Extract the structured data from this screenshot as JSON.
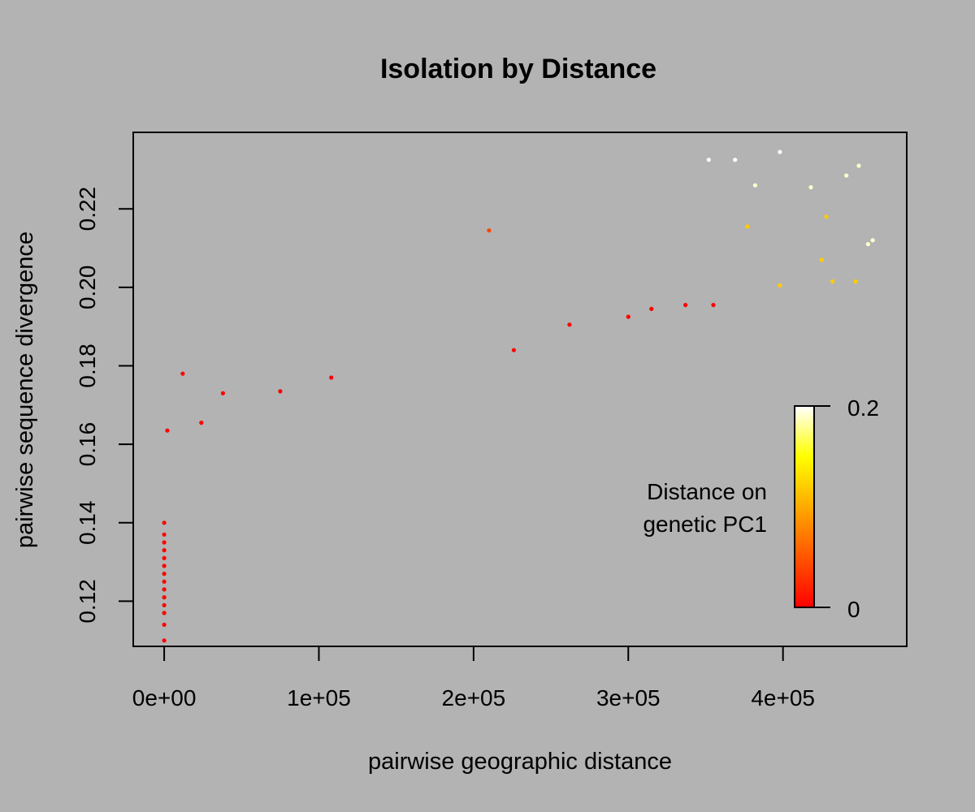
{
  "chart_data": {
    "type": "scatter",
    "title": "Isolation by Distance",
    "xlabel": "pairwise geographic distance",
    "ylabel": "pairwise sequence divergence",
    "xlim": [
      -20000,
      480000
    ],
    "ylim": [
      0.1085,
      0.2395
    ],
    "xticks": [
      0,
      100000,
      200000,
      300000,
      400000
    ],
    "xtick_labels": [
      "0e+00",
      "1e+05",
      "2e+05",
      "3e+05",
      "4e+05"
    ],
    "yticks": [
      0.12,
      0.14,
      0.16,
      0.18,
      0.2,
      0.22
    ],
    "ytick_labels": [
      "0.12",
      "0.14",
      "0.16",
      "0.18",
      "0.20",
      "0.22"
    ],
    "grid": false,
    "color_variable": "Distance on genetic PC1",
    "color_scale": {
      "min": 0,
      "max": 0.2,
      "min_label": "0",
      "max_label": "0.2",
      "colors": [
        "#ff0000",
        "#ff5500",
        "#ffaa00",
        "#ffff00",
        "#ffffff"
      ]
    },
    "legend": {
      "title_lines": [
        "Distance on",
        "genetic PC1"
      ],
      "placement": "bottom-right"
    },
    "series": [
      {
        "description_points": "x = geographic distance, y = sequence divergence, c = distance on genetic PC1",
        "points": [
          [
            0,
            0.14,
            0.0
          ],
          [
            0,
            0.137,
            0.0
          ],
          [
            0,
            0.135,
            0.0
          ],
          [
            0,
            0.133,
            0.0
          ],
          [
            0,
            0.131,
            0.0
          ],
          [
            0,
            0.129,
            0.0
          ],
          [
            0,
            0.127,
            0.0
          ],
          [
            0,
            0.125,
            0.0
          ],
          [
            0,
            0.123,
            0.0
          ],
          [
            0,
            0.121,
            0.0
          ],
          [
            0,
            0.119,
            0.0
          ],
          [
            0,
            0.117,
            0.0
          ],
          [
            0,
            0.114,
            0.0
          ],
          [
            0,
            0.11,
            0.0
          ],
          [
            2000,
            0.1635,
            0.0
          ],
          [
            24000,
            0.1655,
            0.0
          ],
          [
            12000,
            0.178,
            0.0
          ],
          [
            38000,
            0.173,
            0.0
          ],
          [
            75000,
            0.1735,
            0.0
          ],
          [
            108000,
            0.177,
            0.0
          ],
          [
            210000,
            0.2145,
            0.04
          ],
          [
            226000,
            0.184,
            0.0
          ],
          [
            355000,
            0.1955,
            0.0
          ],
          [
            337000,
            0.1955,
            0.0
          ],
          [
            315000,
            0.1945,
            0.0
          ],
          [
            300000,
            0.1925,
            0.0
          ],
          [
            262000,
            0.1905,
            0.0
          ],
          [
            377000,
            0.2155,
            0.12
          ],
          [
            398000,
            0.2005,
            0.12
          ],
          [
            432000,
            0.2015,
            0.12
          ],
          [
            447000,
            0.2015,
            0.12
          ],
          [
            428000,
            0.218,
            0.12
          ],
          [
            425000,
            0.207,
            0.12
          ],
          [
            455000,
            0.211,
            0.19
          ],
          [
            458000,
            0.212,
            0.19
          ],
          [
            449000,
            0.231,
            0.19
          ],
          [
            441000,
            0.2285,
            0.19
          ],
          [
            398000,
            0.2345,
            0.2
          ],
          [
            352000,
            0.2325,
            0.2
          ],
          [
            369000,
            0.2325,
            0.2
          ],
          [
            382000,
            0.226,
            0.19
          ],
          [
            418000,
            0.2255,
            0.19
          ]
        ]
      }
    ]
  }
}
